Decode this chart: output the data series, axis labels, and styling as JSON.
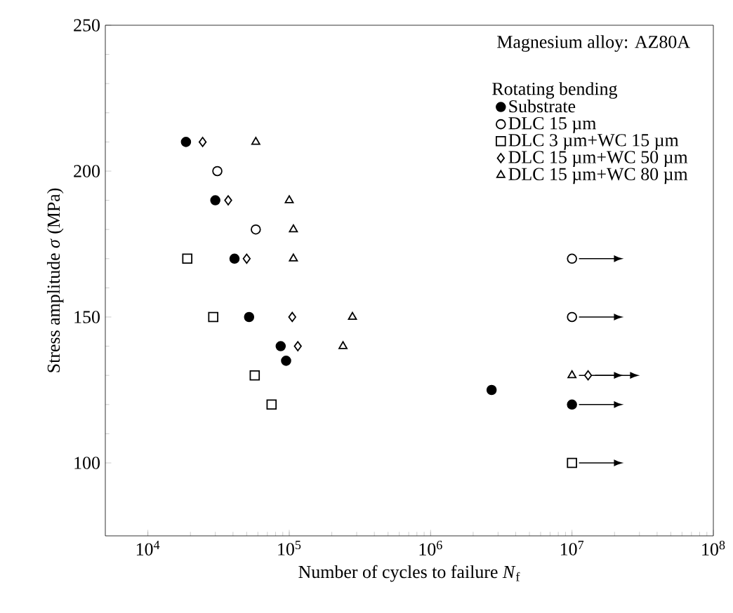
{
  "chart_data": {
    "type": "scatter",
    "xlabel": "Number of cycles to failure    *N*$_{f}$",
    "ylabel": "Stress amplitude   *σ*   (MPa)",
    "legend_title": "Rotating bending",
    "annotations": [
      "Magnesium alloy: AZ80A"
    ],
    "log": "x",
    "xlim": [
      5000,
      100000000
    ],
    "ylim": [
      75,
      250
    ],
    "xticks": [
      {
        "value": 10000,
        "label": "10$^{4}$"
      },
      {
        "value": 100000,
        "label": "10$^{5}$"
      },
      {
        "value": 1000000,
        "label": "10$^{6}$"
      },
      {
        "value": 10000000,
        "label": "10$^{7}$"
      },
      {
        "value": 100000000,
        "label": "10$^{8}$"
      }
    ],
    "yticks": [
      100,
      150,
      200,
      250
    ],
    "legend": "top right",
    "grid": false,
    "series": [
      {
        "name": "Substrate",
        "color": "#000000",
        "marker": "circle",
        "x": [
          18600,
          30000,
          41000,
          52000,
          87000,
          95000,
          2700000,
          10000000
        ],
        "values": [
          210,
          190,
          170,
          150,
          140,
          135,
          125,
          120
        ]
      },
      {
        "name": "DLC 15 µm",
        "color": "#000000",
        "marker": "circle",
        "x": [
          31000,
          58000,
          10000000,
          10000000
        ],
        "values": [
          200,
          180,
          170,
          150
        ]
      },
      {
        "name": "DLC 3 µm+WC 15 µm",
        "color": "#000000",
        "marker": "square",
        "x": [
          19000,
          29000,
          57000,
          75000,
          10000000
        ],
        "values": [
          170,
          150,
          130,
          120,
          100
        ]
      },
      {
        "name": "DLC 15 µm+WC 50 µm",
        "color": "#000000",
        "marker": "diamond",
        "x": [
          24400,
          37000,
          50000,
          105000,
          115000,
          13000000
        ],
        "values": [
          210,
          190,
          170,
          150,
          140,
          130
        ]
      },
      {
        "name": "DLC 15 µm+WC 80 µm",
        "color": "#000000",
        "marker": "triangle",
        "x": [
          58000,
          100000,
          107000,
          107000,
          280000,
          240000,
          10000000
        ],
        "values": [
          210,
          190,
          180,
          170,
          150,
          140,
          130
        ]
      }
    ]
  }
}
